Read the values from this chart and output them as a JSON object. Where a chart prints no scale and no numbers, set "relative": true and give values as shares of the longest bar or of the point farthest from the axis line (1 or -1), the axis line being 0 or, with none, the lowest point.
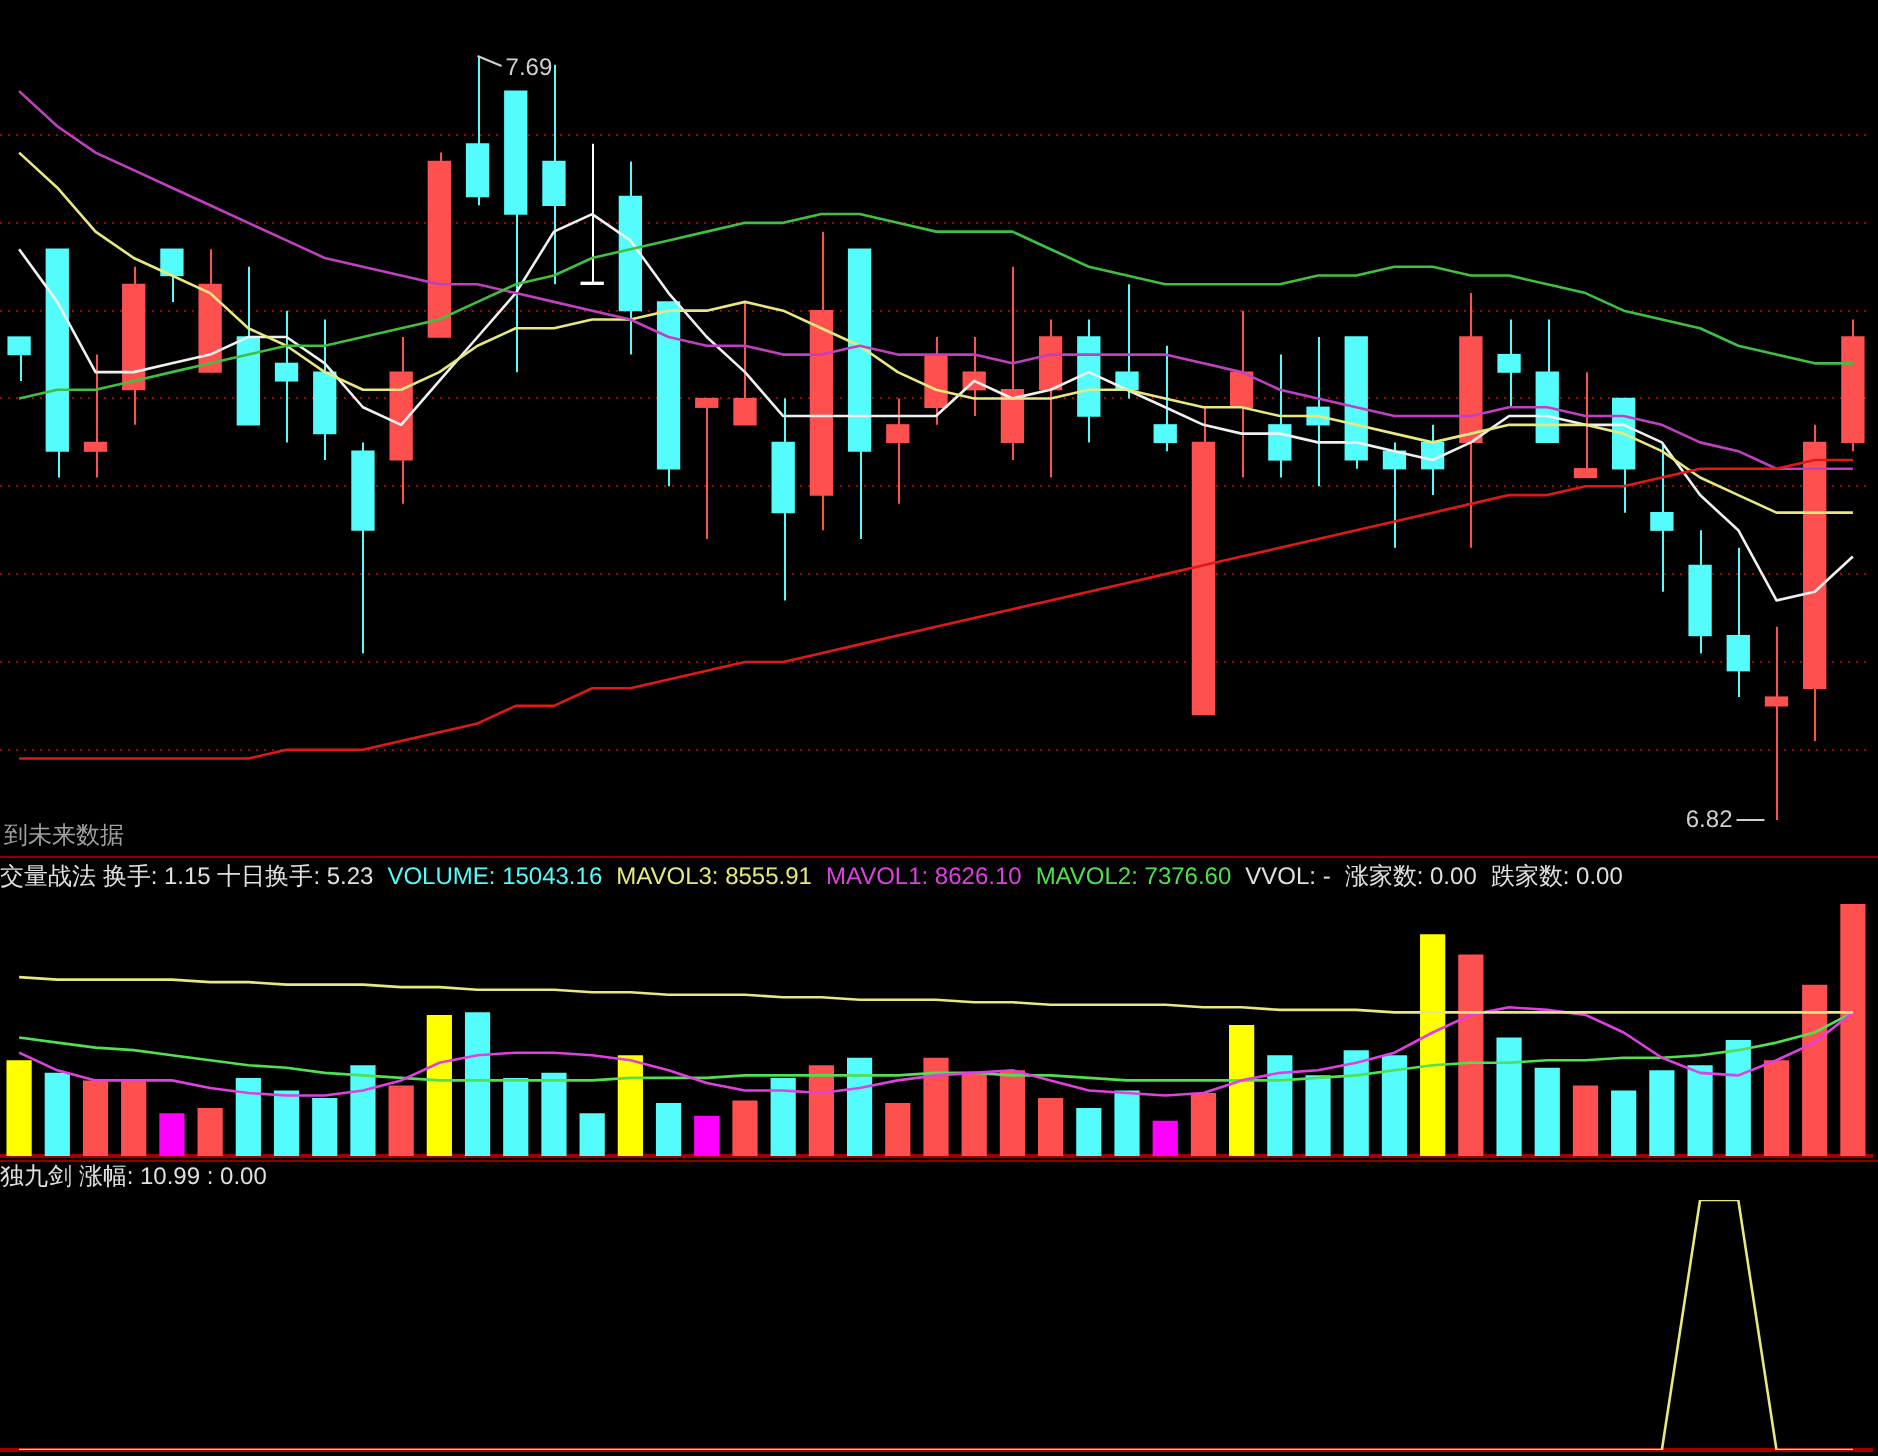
{
  "chart_data": [
    {
      "type": "candlestick",
      "categories": [
        null,
        null,
        null,
        null,
        null,
        null,
        null,
        null,
        null,
        null,
        null,
        null,
        null,
        null,
        null,
        null,
        null,
        null,
        null,
        null,
        null,
        null,
        null,
        null,
        null,
        null,
        null,
        null,
        null,
        null,
        null,
        null,
        null,
        null,
        null,
        null,
        null,
        null,
        null,
        null,
        null,
        null,
        null,
        null,
        null,
        null,
        null,
        null,
        null
      ],
      "ohlc": [
        [
          7.37,
          7.37,
          7.32,
          7.35
        ],
        [
          7.47,
          7.47,
          7.21,
          7.24
        ],
        [
          7.24,
          7.35,
          7.21,
          7.25
        ],
        [
          7.31,
          7.45,
          7.27,
          7.43
        ],
        [
          7.47,
          7.47,
          7.41,
          7.44
        ],
        [
          7.33,
          7.47,
          7.33,
          7.43
        ],
        [
          7.37,
          7.45,
          7.27,
          7.27
        ],
        [
          7.34,
          7.4,
          7.25,
          7.32
        ],
        [
          7.33,
          7.39,
          7.23,
          7.26
        ],
        [
          7.24,
          7.25,
          7.01,
          7.15
        ],
        [
          7.23,
          7.37,
          7.18,
          7.33
        ],
        [
          7.37,
          7.58,
          7.37,
          7.57
        ],
        [
          7.59,
          7.69,
          7.52,
          7.53
        ],
        [
          7.65,
          7.65,
          7.33,
          7.51
        ],
        [
          7.57,
          7.68,
          7.43,
          7.52
        ],
        [
          7.43,
          7.59,
          7.43,
          7.43
        ],
        [
          7.53,
          7.57,
          7.35,
          7.4
        ],
        [
          7.41,
          7.41,
          7.2,
          7.22
        ],
        [
          7.29,
          7.3,
          7.14,
          7.3
        ],
        [
          7.27,
          7.41,
          7.27,
          7.3
        ],
        [
          7.25,
          7.3,
          7.07,
          7.17
        ],
        [
          7.19,
          7.49,
          7.15,
          7.4
        ],
        [
          7.47,
          7.47,
          7.14,
          7.24
        ],
        [
          7.25,
          7.3,
          7.18,
          7.27
        ],
        [
          7.29,
          7.37,
          7.27,
          7.35
        ],
        [
          7.31,
          7.37,
          7.28,
          7.33
        ],
        [
          7.25,
          7.45,
          7.23,
          7.31
        ],
        [
          7.31,
          7.39,
          7.21,
          7.37
        ],
        [
          7.37,
          7.39,
          7.25,
          7.28
        ],
        [
          7.33,
          7.43,
          7.3,
          7.31
        ],
        [
          7.27,
          7.36,
          7.24,
          7.25
        ],
        [
          6.94,
          7.29,
          6.94,
          7.25
        ],
        [
          7.29,
          7.4,
          7.21,
          7.33
        ],
        [
          7.27,
          7.35,
          7.21,
          7.23
        ],
        [
          7.29,
          7.37,
          7.2,
          7.27
        ],
        [
          7.37,
          7.37,
          7.22,
          7.23
        ],
        [
          7.24,
          7.25,
          7.13,
          7.22
        ],
        [
          7.25,
          7.27,
          7.19,
          7.22
        ],
        [
          7.25,
          7.42,
          7.13,
          7.37
        ],
        [
          7.35,
          7.39,
          7.29,
          7.33
        ],
        [
          7.33,
          7.39,
          7.25,
          7.25
        ],
        [
          7.21,
          7.33,
          7.21,
          7.22
        ],
        [
          7.3,
          7.3,
          7.17,
          7.22
        ],
        [
          7.17,
          7.25,
          7.08,
          7.15
        ],
        [
          7.11,
          7.15,
          7.01,
          7.03
        ],
        [
          7.03,
          7.13,
          6.96,
          6.99
        ],
        [
          6.95,
          7.04,
          6.82,
          6.96
        ],
        [
          6.97,
          7.27,
          6.91,
          7.25
        ],
        [
          7.25,
          7.39,
          7.24,
          7.37
        ]
      ],
      "colors": [
        "#54fcfc",
        "#54fcfc",
        "#ff5050",
        "#ff5050",
        "#54fcfc",
        "#ff5050",
        "#54fcfc",
        "#54fcfc",
        "#54fcfc",
        "#54fcfc",
        "#ff5050",
        "#ff5050",
        "#54fcfc",
        "#54fcfc",
        "#54fcfc",
        "#ffffff",
        "#54fcfc",
        "#54fcfc",
        "#ff5050",
        "#ff5050",
        "#54fcfc",
        "#ff5050",
        "#54fcfc",
        "#ff5050",
        "#ff5050",
        "#ff5050",
        "#ff5050",
        "#ff5050",
        "#54fcfc",
        "#54fcfc",
        "#54fcfc",
        "#ff5050",
        "#ff5050",
        "#54fcfc",
        "#54fcfc",
        "#54fcfc",
        "#54fcfc",
        "#54fcfc",
        "#ff5050",
        "#54fcfc",
        "#54fcfc",
        "#ff5050",
        "#54fcfc",
        "#54fcfc",
        "#54fcfc",
        "#54fcfc",
        "#ff5050",
        "#ff5050",
        "#ff5050"
      ],
      "series": [
        {
          "type": "line",
          "color": "#e01818",
          "values": [
            6.89,
            6.89,
            6.89,
            6.89,
            6.89,
            6.89,
            6.89,
            6.9,
            6.9,
            6.9,
            6.91,
            6.92,
            6.93,
            6.95,
            6.95,
            6.97,
            6.97,
            6.98,
            6.99,
            7.0,
            7.0,
            7.01,
            7.02,
            7.03,
            7.04,
            7.05,
            7.06,
            7.07,
            7.08,
            7.09,
            7.1,
            7.11,
            7.12,
            7.13,
            7.14,
            7.15,
            7.16,
            7.17,
            7.18,
            7.19,
            7.19,
            7.2,
            7.2,
            7.21,
            7.22,
            7.22,
            7.22,
            7.23,
            7.23
          ]
        },
        {
          "type": "line",
          "color": "#40c040",
          "values": [
            7.3,
            7.31,
            7.31,
            7.32,
            7.33,
            7.34,
            7.35,
            7.36,
            7.36,
            7.37,
            7.38,
            7.39,
            7.41,
            7.43,
            7.44,
            7.46,
            7.47,
            7.48,
            7.49,
            7.5,
            7.5,
            7.51,
            7.51,
            7.5,
            7.49,
            7.49,
            7.49,
            7.47,
            7.45,
            7.44,
            7.43,
            7.43,
            7.43,
            7.43,
            7.44,
            7.44,
            7.45,
            7.45,
            7.44,
            7.44,
            7.43,
            7.42,
            7.4,
            7.39,
            7.38,
            7.36,
            7.35,
            7.34,
            7.34
          ]
        },
        {
          "type": "line",
          "color": "#c040c0",
          "values": [
            7.65,
            7.61,
            7.58,
            7.56,
            7.54,
            7.52,
            7.5,
            7.48,
            7.46,
            7.45,
            7.44,
            7.43,
            7.43,
            7.42,
            7.41,
            7.4,
            7.39,
            7.37,
            7.36,
            7.36,
            7.35,
            7.35,
            7.36,
            7.35,
            7.35,
            7.35,
            7.34,
            7.35,
            7.35,
            7.35,
            7.35,
            7.34,
            7.33,
            7.31,
            7.3,
            7.29,
            7.28,
            7.28,
            7.28,
            7.29,
            7.29,
            7.28,
            7.28,
            7.27,
            7.25,
            7.24,
            7.22,
            7.22,
            7.22
          ]
        },
        {
          "type": "line",
          "color": "#e8e880",
          "values": [
            7.58,
            7.54,
            7.49,
            7.46,
            7.44,
            7.42,
            7.38,
            7.36,
            7.33,
            7.31,
            7.31,
            7.33,
            7.36,
            7.38,
            7.38,
            7.39,
            7.39,
            7.4,
            7.4,
            7.41,
            7.4,
            7.38,
            7.36,
            7.33,
            7.31,
            7.3,
            7.3,
            7.3,
            7.31,
            7.31,
            7.3,
            7.29,
            7.29,
            7.28,
            7.28,
            7.27,
            7.26,
            7.25,
            7.26,
            7.27,
            7.27,
            7.27,
            7.26,
            7.24,
            7.21,
            7.19,
            7.17,
            7.17,
            7.17
          ]
        },
        {
          "type": "line",
          "color": "#f0f0f0",
          "values": [
            7.47,
            7.41,
            7.33,
            7.33,
            7.34,
            7.35,
            7.37,
            7.37,
            7.34,
            7.29,
            7.27,
            7.32,
            7.37,
            7.42,
            7.49,
            7.51,
            7.48,
            7.42,
            7.37,
            7.33,
            7.28,
            7.28,
            7.28,
            7.28,
            7.28,
            7.32,
            7.3,
            7.31,
            7.33,
            7.31,
            7.29,
            7.27,
            7.26,
            7.26,
            7.25,
            7.25,
            7.24,
            7.23,
            7.25,
            7.28,
            7.28,
            7.27,
            7.27,
            7.25,
            7.19,
            7.15,
            7.07,
            7.08,
            7.12
          ]
        }
      ],
      "yticks": [
        {
          "value": 6.9,
          "label": null
        },
        {
          "value": 7.0,
          "label": null
        },
        {
          "value": 7.1,
          "label": null
        },
        {
          "value": 7.2,
          "label": null
        },
        {
          "value": 7.3,
          "label": null
        },
        {
          "value": 7.4,
          "label": null
        },
        {
          "value": 7.5,
          "label": null
        },
        {
          "value": 7.6,
          "label": null
        }
      ],
      "grid": "y",
      "tick_labels": false,
      "annotations": [
        "7.69",
        "6.82",
        "到未来数据"
      ]
    },
    {
      "type": "bar",
      "title": "交量战法 换手: 1.15 十日换手: 5.23",
      "relative": true,
      "tick_labels": false,
      "categories": [
        null,
        null,
        null,
        null,
        null,
        null,
        null,
        null,
        null,
        null,
        null,
        null,
        null,
        null,
        null,
        null,
        null,
        null,
        null,
        null,
        null,
        null,
        null,
        null,
        null,
        null,
        null,
        null,
        null,
        null,
        null,
        null,
        null,
        null,
        null,
        null,
        null,
        null,
        null,
        null,
        null,
        null,
        null,
        null,
        null,
        null,
        null,
        null,
        null
      ],
      "series": [
        {
          "name": "VOLUME: 15043.16",
          "type": "bar",
          "color": "#54fcfc",
          "colors": [
            "#ffff00",
            "#54fcfc",
            "#ff5050",
            "#ff5050",
            "#ff00ff",
            "#ff5050",
            "#54fcfc",
            "#54fcfc",
            "#54fcfc",
            "#54fcfc",
            "#ff5050",
            "#ffff00",
            "#54fcfc",
            "#54fcfc",
            "#54fcfc",
            "#54fcfc",
            "#ffff00",
            "#54fcfc",
            "#ff00ff",
            "#ff5050",
            "#54fcfc",
            "#ff5050",
            "#54fcfc",
            "#ff5050",
            "#ff5050",
            "#ff5050",
            "#ff5050",
            "#ff5050",
            "#54fcfc",
            "#54fcfc",
            "#ff00ff",
            "#ff5050",
            "#ffff00",
            "#54fcfc",
            "#54fcfc",
            "#54fcfc",
            "#54fcfc",
            "#ffff00",
            "#ff5050",
            "#54fcfc",
            "#54fcfc",
            "#ff5050",
            "#54fcfc",
            "#54fcfc",
            "#54fcfc",
            "#54fcfc",
            "#ff5050",
            "#ff5050",
            "#ff5050"
          ],
          "values": [
            0.38,
            0.33,
            0.3,
            0.3,
            0.17,
            0.19,
            0.31,
            0.26,
            0.23,
            0.36,
            0.28,
            0.56,
            0.57,
            0.31,
            0.33,
            0.17,
            0.4,
            0.21,
            0.16,
            0.22,
            0.31,
            0.36,
            0.39,
            0.21,
            0.39,
            0.33,
            0.34,
            0.23,
            0.19,
            0.26,
            0.14,
            0.25,
            0.52,
            0.4,
            0.32,
            0.42,
            0.4,
            0.88,
            0.8,
            0.47,
            0.35,
            0.28,
            0.26,
            0.34,
            0.36,
            0.46,
            0.38,
            0.68,
            1
          ]
        },
        {
          "name": "MAVOL3: 8555.91",
          "type": "line",
          "color": "#e8e880",
          "values": [
            0.71,
            0.7,
            0.7,
            0.7,
            0.7,
            0.69,
            0.69,
            0.68,
            0.68,
            0.68,
            0.67,
            0.67,
            0.66,
            0.66,
            0.66,
            0.65,
            0.65,
            0.64,
            0.64,
            0.64,
            0.63,
            0.63,
            0.62,
            0.62,
            0.62,
            0.61,
            0.61,
            0.6,
            0.6,
            0.6,
            0.6,
            0.59,
            0.59,
            0.58,
            0.58,
            0.58,
            0.57,
            0.57,
            0.57,
            0.57,
            0.57,
            0.57,
            0.57,
            0.57,
            0.57,
            0.57,
            0.57,
            0.57,
            0.57
          ]
        },
        {
          "name": "MAVOL1: 8626.10",
          "type": "line",
          "color": "#e040e0",
          "values": [
            0.41,
            0.34,
            0.3,
            0.3,
            0.3,
            0.27,
            0.25,
            0.24,
            0.24,
            0.26,
            0.3,
            0.37,
            0.4,
            0.41,
            0.41,
            0.4,
            0.38,
            0.34,
            0.29,
            0.26,
            0.26,
            0.25,
            0.27,
            0.3,
            0.32,
            0.33,
            0.34,
            0.3,
            0.26,
            0.25,
            0.24,
            0.25,
            0.3,
            0.33,
            0.34,
            0.37,
            0.41,
            0.49,
            0.56,
            0.59,
            0.58,
            0.56,
            0.49,
            0.39,
            0.33,
            0.32,
            0.38,
            0.45,
            0.57
          ]
        },
        {
          "name": "MAVOL2: 7376.60",
          "type": "line",
          "color": "#50e050",
          "values": [
            0.47,
            0.45,
            0.43,
            0.42,
            0.4,
            0.38,
            0.36,
            0.35,
            0.33,
            0.32,
            0.31,
            0.3,
            0.3,
            0.3,
            0.3,
            0.3,
            0.31,
            0.31,
            0.31,
            0.32,
            0.32,
            0.32,
            0.32,
            0.32,
            0.33,
            0.33,
            0.32,
            0.32,
            0.31,
            0.3,
            0.3,
            0.3,
            0.3,
            0.3,
            0.31,
            0.32,
            0.34,
            0.36,
            0.37,
            0.37,
            0.38,
            0.38,
            0.39,
            0.39,
            0.4,
            0.42,
            0.45,
            0.49,
            0.57
          ]
        }
      ],
      "annotations": [
        "VVOL: -",
        "涨家数: 0.00",
        "跌家数: 0.00"
      ]
    },
    {
      "type": "line",
      "title": "独九剑 涨幅: 10.99 : 0.00",
      "relative": true,
      "tick_labels": false,
      "color": "#e8e880",
      "categories": [
        null,
        null,
        null,
        null,
        null,
        null,
        null,
        null,
        null,
        null,
        null,
        null,
        null,
        null,
        null,
        null,
        null,
        null,
        null,
        null,
        null,
        null,
        null,
        null,
        null,
        null,
        null,
        null,
        null,
        null,
        null,
        null,
        null,
        null,
        null,
        null,
        null,
        null,
        null,
        null,
        null,
        null,
        null,
        null,
        null,
        null,
        null,
        null,
        null
      ],
      "values": [
        0,
        0,
        0,
        0,
        0,
        0,
        0,
        0,
        0,
        0,
        0,
        0,
        0,
        0,
        0,
        0,
        0,
        0,
        0,
        0,
        0,
        0,
        0,
        0,
        0,
        0,
        0,
        0,
        0,
        0,
        0,
        0,
        0,
        0,
        0,
        0,
        0,
        0,
        0,
        0,
        0,
        0,
        0,
        0,
        1,
        1,
        0,
        0,
        0
      ]
    }
  ]
}
